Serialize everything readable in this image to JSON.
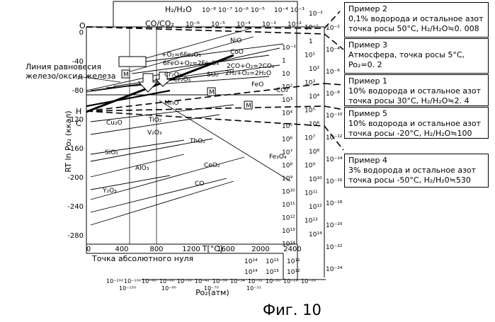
{
  "figure": {
    "caption": "Фиг. 10",
    "equilibrium_label": [
      "Линия равновесия",
      "железо/оксид железа"
    ],
    "y_axis_label": "RT ln Po₂ (ккал)",
    "x_axis_label": "T[°C]",
    "abs_zero_label": "Точка абсолютного нуля",
    "po2_label": "Po₂(атм)",
    "h2_scale_title": "H₂/H₂O",
    "co_scale_title": "CO/CO₂",
    "y_ticks": [
      "0",
      "-40",
      "-80",
      "-120",
      "-160",
      "-200",
      "-240",
      "-280"
    ],
    "x_ticks": [
      "0",
      "400",
      "800",
      "1200",
      "1600",
      "2000",
      "2400"
    ],
    "top_h2_ticks": [
      "10⁻⁸",
      "10⁻⁷",
      "10⁻⁶",
      "10⁻⁵",
      "10⁻⁴",
      "10⁻³"
    ],
    "top_co_ticks": [
      "10⁻⁶",
      "10⁻⁵",
      "10⁻⁴",
      "10⁻³",
      "10⁻²"
    ],
    "right_h2_ticks": [
      "10⁻²",
      "10⁻¹",
      "1",
      "10¹",
      "10²",
      "10³",
      "10⁴",
      "10⁵",
      "10⁶",
      "10⁷",
      "10⁸",
      "10⁹",
      "10¹⁰",
      "10¹¹",
      "10¹²",
      "10¹³",
      "10¹⁴"
    ],
    "right_co_ticks": [
      "10⁻¹",
      "1",
      "10",
      "10²",
      "10³",
      "10⁴",
      "10⁵",
      "10⁶",
      "10⁷",
      "10⁸",
      "10⁹",
      "10¹⁰",
      "10¹¹",
      "10¹²",
      "10¹³",
      "10¹⁴"
    ],
    "right_po2_ticks": [
      "10⁻²",
      "10⁻⁴",
      "10⁻⁶",
      "10⁻⁸",
      "10⁻¹⁰",
      "10⁻¹²",
      "10⁻¹⁴",
      "10⁻¹⁶",
      "10⁻¹⁸",
      "10⁻²⁰",
      "10⁻²²",
      "10⁻²⁴"
    ],
    "bottom_co_ticks": [
      "10¹⁴",
      "10¹³",
      "10¹²"
    ],
    "bottom_h2_ticks": [
      "10¹⁴",
      "10¹³",
      "10¹²"
    ],
    "bottom_po2_ticks_a": [
      "10⁻²⁰⁰",
      "10⁻¹⁰⁰",
      "10⁻⁸⁰",
      "10⁻⁶⁰",
      "10⁻⁵⁰",
      "10⁻⁴²",
      "10⁻³⁸",
      "10⁻³⁴",
      "10⁻³²",
      "10⁻³⁰",
      "10⁻²⁸",
      "10⁻²⁶"
    ],
    "bottom_po2_ticks_b": [
      "10⁻¹⁵⁰",
      "10⁻⁹⁰",
      "10⁻⁷⁰",
      "10⁻³¹"
    ],
    "left_points": [
      "O",
      "H",
      "C"
    ],
    "reaction_labels": [
      "+O₂=6Fe₂O₃",
      "6FeO+O₂=2Fe₃O₄",
      "NiO",
      "CoO",
      "2CO+O₂=2CO₂",
      "2H₂+O₂=2H₂O",
      "FeO",
      "CO₂",
      "SO₂",
      "Cr₂O₃",
      "MnO",
      "TiO₂",
      "V₂O₃",
      "SiO₂",
      "AlO₃",
      "ThO₂",
      "CeO₂",
      "Y₂O₃",
      "CO",
      "Fe₃O₄",
      "Cu₂O",
      "Cr₂O₃"
    ],
    "marks": [
      "M",
      "M",
      "M"
    ]
  },
  "examples": [
    {
      "title": "Пример 2",
      "lines": [
        "0,1% водорода и остальное азот",
        "точка росы 50°C, H₂/H₂O≒0. 008"
      ]
    },
    {
      "title": "Пример 3",
      "lines": [
        "Атмосфера,        точка росы 5°C,",
        "Po₂=0. 2"
      ]
    },
    {
      "title": "Пример 1",
      "lines": [
        "10% водорода и остальное азот",
        "точка росы 30°C, H₂/H₂O≒2. 4"
      ]
    },
    {
      "title": "Пример 5",
      "lines": [
        "10% водорода и остальное азот",
        "точка росы -20°C, H₂/H₂O≒100"
      ]
    },
    {
      "title": "Пример 4",
      "lines": [
        "3% водорода и остальное азот",
        "точка росы  -50°C, H₂/H₂0≒530"
      ]
    }
  ]
}
